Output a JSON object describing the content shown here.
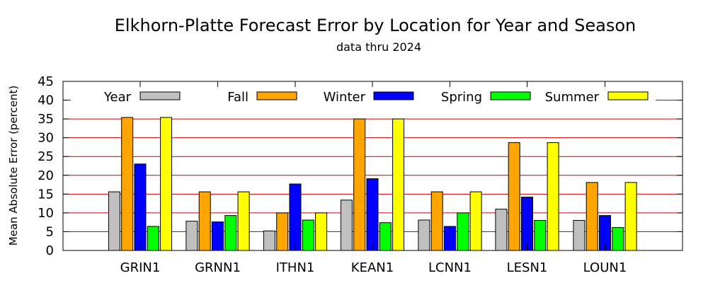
{
  "chart_data": {
    "type": "bar",
    "title": "Elkhorn-Platte Forecast Error by Location for Year and Season",
    "subtitle": "data thru 2024",
    "xlabel": "",
    "ylabel": "Mean Absolute Error (percent)",
    "ylim": [
      0,
      45
    ],
    "yticks": [
      0,
      5,
      10,
      15,
      20,
      25,
      30,
      35,
      40,
      45
    ],
    "grid": "horizontal",
    "grid_color": "#cc0000",
    "legend_position": "top",
    "categories": [
      "GRIN1",
      "GRNN1",
      "ITHN1",
      "KEAN1",
      "LCNN1",
      "LESN1",
      "LOUN1"
    ],
    "series": [
      {
        "name": "Year",
        "color": "#c0c0c0",
        "values": [
          15.6,
          7.8,
          5.2,
          13.4,
          8.1,
          11.0,
          8.0
        ]
      },
      {
        "name": "Fall",
        "color": "#ffa500",
        "values": [
          35.4,
          15.6,
          10.0,
          35.0,
          15.6,
          28.7,
          18.1
        ]
      },
      {
        "name": "Winter",
        "color": "#0000ff",
        "values": [
          23.0,
          7.6,
          17.7,
          19.1,
          6.4,
          14.2,
          9.3
        ]
      },
      {
        "name": "Spring",
        "color": "#00ff00",
        "values": [
          6.4,
          9.3,
          8.1,
          7.4,
          10.0,
          8.0,
          6.1
        ]
      },
      {
        "name": "Summer",
        "color": "#ffff00",
        "values": [
          35.4,
          15.6,
          10.0,
          35.0,
          15.6,
          28.7,
          18.1
        ]
      }
    ]
  }
}
